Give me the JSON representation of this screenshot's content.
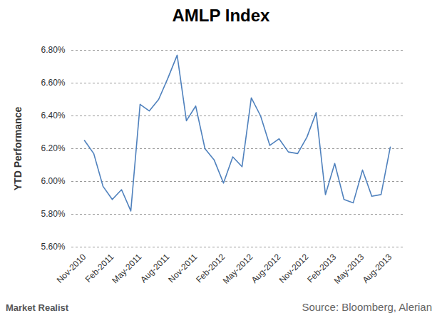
{
  "chart_data": {
    "type": "line",
    "title": "AMLP Index",
    "y_label": "YTD Performance",
    "source": "Source: Bloomberg, Alerian",
    "logo_text": "Market Realist",
    "categories": [
      "Nov-2010",
      null,
      null,
      "Feb-2011",
      null,
      null,
      "May-2011",
      null,
      null,
      "Aug-2011",
      null,
      null,
      "Nov-2011",
      null,
      null,
      "Feb-2012",
      null,
      null,
      "May-2012",
      null,
      null,
      "Aug-2012",
      null,
      null,
      "Nov-2012",
      null,
      null,
      "Feb-2013",
      null,
      null,
      "May-2013",
      null,
      null,
      "Aug-2013"
    ],
    "values": [
      6.25,
      6.17,
      5.97,
      5.89,
      5.95,
      5.82,
      6.47,
      6.43,
      6.5,
      6.63,
      6.77,
      6.37,
      6.46,
      6.2,
      6.13,
      5.99,
      6.15,
      6.09,
      6.51,
      6.4,
      6.22,
      6.26,
      6.18,
      6.17,
      6.27,
      6.42,
      5.92,
      6.11,
      5.89,
      5.87,
      6.07,
      5.91,
      5.92,
      6.21
    ],
    "color": "#4f81bd",
    "ylim": [
      5.6,
      6.8
    ],
    "yticks": [
      {
        "value": 5.6,
        "label": "5.60%"
      },
      {
        "value": 5.8,
        "label": "5.80%"
      },
      {
        "value": 6.0,
        "label": "6.00%"
      },
      {
        "value": 6.2,
        "label": "6.20%"
      },
      {
        "value": 6.4,
        "label": "6.40%"
      },
      {
        "value": 6.6,
        "label": "6.60%"
      },
      {
        "value": 6.8,
        "label": "6.80%"
      }
    ],
    "grid": true
  }
}
